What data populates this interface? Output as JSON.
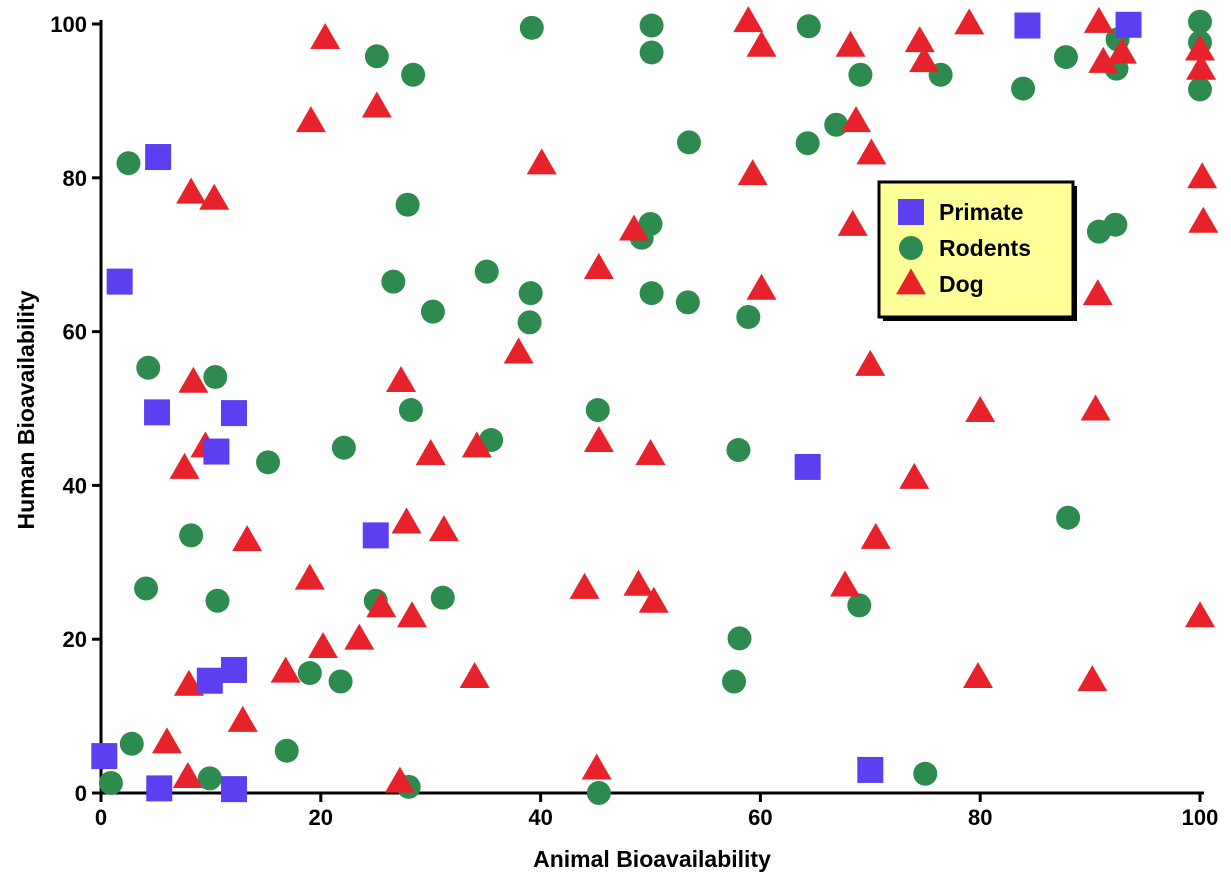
{
  "chart_data": {
    "type": "scatter",
    "title": "",
    "xlabel": "Animal Bioavailability",
    "ylabel": "Human Bioavailability",
    "xlim": [
      0,
      100
    ],
    "ylim": [
      0,
      100
    ],
    "xticks": [
      0,
      20,
      40,
      60,
      80,
      100
    ],
    "yticks": [
      0,
      20,
      40,
      60,
      80,
      100
    ],
    "grid": false,
    "legend": {
      "placement": "center-right"
    },
    "series": [
      {
        "name": "Primate",
        "marker": "square",
        "color": "#5b3ff0",
        "points": [
          [
            0.3,
            4.8
          ],
          [
            1.7,
            66.5
          ],
          [
            5.2,
            82.7
          ],
          [
            5.1,
            49.5
          ],
          [
            5.3,
            0.6
          ],
          [
            9.9,
            14.6
          ],
          [
            10.5,
            44.4
          ],
          [
            12.1,
            49.4
          ],
          [
            12.1,
            16.0
          ],
          [
            12.1,
            0.5
          ],
          [
            25.0,
            33.5
          ],
          [
            64.3,
            42.4
          ],
          [
            70.0,
            3.0
          ],
          [
            84.3,
            99.8
          ],
          [
            93.5,
            99.9
          ]
        ]
      },
      {
        "name": "Rodents",
        "marker": "circle",
        "color": "#2e8b4f",
        "points": [
          [
            0.9,
            1.3
          ],
          [
            2.5,
            81.9
          ],
          [
            2.8,
            6.4
          ],
          [
            4.1,
            26.6
          ],
          [
            4.3,
            55.3
          ],
          [
            8.2,
            33.5
          ],
          [
            9.9,
            1.9
          ],
          [
            10.4,
            54.1
          ],
          [
            10.6,
            25.0
          ],
          [
            15.2,
            43.0
          ],
          [
            16.9,
            5.5
          ],
          [
            19.0,
            15.6
          ],
          [
            21.8,
            14.5
          ],
          [
            22.1,
            44.9
          ],
          [
            25.0,
            25.0
          ],
          [
            25.1,
            95.8
          ],
          [
            26.6,
            66.5
          ],
          [
            27.9,
            76.5
          ],
          [
            28.0,
            0.8
          ],
          [
            28.2,
            49.8
          ],
          [
            28.4,
            93.4
          ],
          [
            30.2,
            62.6
          ],
          [
            31.1,
            25.4
          ],
          [
            35.1,
            67.8
          ],
          [
            35.5,
            45.9
          ],
          [
            39.0,
            61.2
          ],
          [
            39.1,
            65.0
          ],
          [
            39.2,
            99.5
          ],
          [
            45.2,
            49.8
          ],
          [
            45.3,
            0.0
          ],
          [
            49.2,
            72.2
          ],
          [
            50.0,
            74.0
          ],
          [
            50.1,
            65.0
          ],
          [
            50.1,
            96.3
          ],
          [
            50.1,
            99.8
          ],
          [
            53.4,
            63.8
          ],
          [
            53.5,
            84.6
          ],
          [
            57.6,
            14.5
          ],
          [
            58.0,
            44.6
          ],
          [
            58.1,
            20.1
          ],
          [
            58.9,
            61.9
          ],
          [
            64.3,
            84.5
          ],
          [
            64.4,
            99.7
          ],
          [
            66.9,
            86.9
          ],
          [
            69.0,
            24.4
          ],
          [
            69.1,
            93.4
          ],
          [
            75.0,
            2.5
          ],
          [
            76.4,
            93.4
          ],
          [
            83.9,
            91.6
          ],
          [
            87.8,
            95.7
          ],
          [
            88.0,
            35.8
          ],
          [
            90.8,
            73.0
          ],
          [
            92.3,
            73.9
          ],
          [
            92.4,
            94.2
          ],
          [
            92.5,
            98.0
          ],
          [
            100.0,
            100.3
          ],
          [
            100.0,
            97.6
          ],
          [
            100.0,
            91.5
          ]
        ]
      },
      {
        "name": "Dog",
        "marker": "triangle",
        "color": "#e8222a",
        "points": [
          [
            6.0,
            6.5
          ],
          [
            7.9,
            2.0
          ],
          [
            8.0,
            14.0
          ],
          [
            8.2,
            78.0
          ],
          [
            8.4,
            53.4
          ],
          [
            7.6,
            42.2
          ],
          [
            9.5,
            45.0
          ],
          [
            10.3,
            77.2
          ],
          [
            12.9,
            9.3
          ],
          [
            13.3,
            32.8
          ],
          [
            16.8,
            15.7
          ],
          [
            19.0,
            27.8
          ],
          [
            19.1,
            87.3
          ],
          [
            20.2,
            18.9
          ],
          [
            20.4,
            98.1
          ],
          [
            23.5,
            20.0
          ],
          [
            25.1,
            89.2
          ],
          [
            25.5,
            24.2
          ],
          [
            27.2,
            1.4
          ],
          [
            27.3,
            53.5
          ],
          [
            27.8,
            35.1
          ],
          [
            28.3,
            22.9
          ],
          [
            30.0,
            44.0
          ],
          [
            31.2,
            34.1
          ],
          [
            34.0,
            15.0
          ],
          [
            34.2,
            45.0
          ],
          [
            38.0,
            57.2
          ],
          [
            40.1,
            81.8
          ],
          [
            44.0,
            26.6
          ],
          [
            45.1,
            3.1
          ],
          [
            45.3,
            45.7
          ],
          [
            45.3,
            68.2
          ],
          [
            48.9,
            27.0
          ],
          [
            48.5,
            73.2
          ],
          [
            50.0,
            44.0
          ],
          [
            50.3,
            24.8
          ],
          [
            58.9,
            100.3
          ],
          [
            59.3,
            80.4
          ],
          [
            60.1,
            97.1
          ],
          [
            60.1,
            65.5
          ],
          [
            67.7,
            26.9
          ],
          [
            68.2,
            97.1
          ],
          [
            68.4,
            73.8
          ],
          [
            68.7,
            87.3
          ],
          [
            70.0,
            55.6
          ],
          [
            70.1,
            83.1
          ],
          [
            70.5,
            33.1
          ],
          [
            74.0,
            40.9
          ],
          [
            74.5,
            97.7
          ],
          [
            74.9,
            95.1
          ],
          [
            79.0,
            100.0
          ],
          [
            79.8,
            15.0
          ],
          [
            80.0,
            49.6
          ],
          [
            90.2,
            14.6
          ],
          [
            90.5,
            49.8
          ],
          [
            90.7,
            64.8
          ],
          [
            90.8,
            100.2
          ],
          [
            91.2,
            95.0
          ],
          [
            92.9,
            96.2
          ],
          [
            100.0,
            96.6
          ],
          [
            100.1,
            94.1
          ],
          [
            100.2,
            80.0
          ],
          [
            100.3,
            74.2
          ],
          [
            100.0,
            22.9
          ]
        ]
      }
    ]
  }
}
